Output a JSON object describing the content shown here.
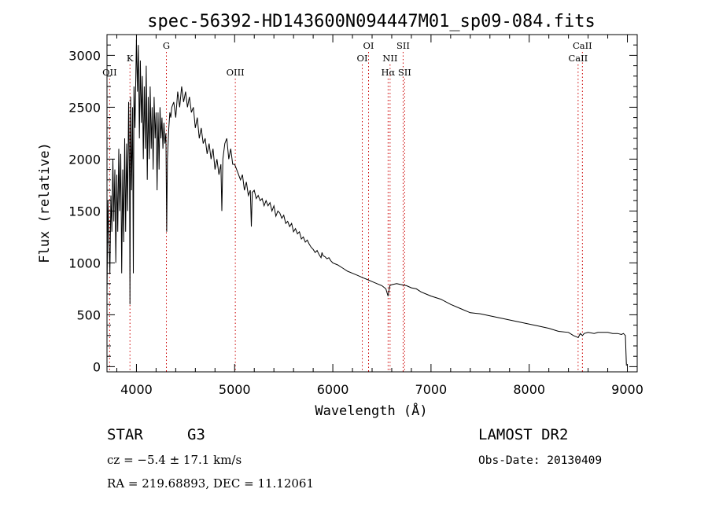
{
  "chart_data": {
    "type": "line",
    "title": "spec-56392-HD143600N094447M01_sp09-084.fits",
    "xlabel": "Wavelength (Å)",
    "ylabel": "Flux (relative)",
    "xlim": [
      3700,
      9100
    ],
    "ylim": [
      -50,
      3200
    ],
    "xticks": [
      4000,
      5000,
      6000,
      7000,
      8000,
      9000
    ],
    "yticks": [
      0,
      500,
      1000,
      1500,
      2000,
      2500,
      3000
    ],
    "grid": false,
    "line_color": "#000000",
    "marker_color": "#cc0000",
    "x": [
      3700,
      3710,
      3720,
      3730,
      3740,
      3750,
      3760,
      3770,
      3780,
      3790,
      3800,
      3810,
      3820,
      3830,
      3840,
      3850,
      3860,
      3870,
      3880,
      3890,
      3900,
      3910,
      3920,
      3930,
      3934,
      3940,
      3950,
      3960,
      3968,
      3975,
      3985,
      4000,
      4010,
      4020,
      4030,
      4040,
      4050,
      4060,
      4070,
      4080,
      4090,
      4100,
      4110,
      4120,
      4130,
      4140,
      4150,
      4160,
      4170,
      4180,
      4190,
      4200,
      4210,
      4220,
      4230,
      4240,
      4250,
      4260,
      4270,
      4280,
      4290,
      4300,
      4308,
      4315,
      4330,
      4340,
      4350,
      4360,
      4380,
      4400,
      4420,
      4440,
      4460,
      4480,
      4500,
      4520,
      4540,
      4560,
      4580,
      4600,
      4620,
      4640,
      4660,
      4680,
      4700,
      4720,
      4740,
      4760,
      4780,
      4800,
      4820,
      4840,
      4860,
      4870,
      4880,
      4900,
      4920,
      4940,
      4960,
      4980,
      5000,
      5020,
      5040,
      5060,
      5080,
      5100,
      5120,
      5140,
      5160,
      5170,
      5180,
      5200,
      5220,
      5240,
      5260,
      5280,
      5300,
      5320,
      5340,
      5360,
      5380,
      5400,
      5420,
      5440,
      5460,
      5480,
      5500,
      5520,
      5540,
      5560,
      5580,
      5600,
      5620,
      5640,
      5660,
      5680,
      5700,
      5720,
      5740,
      5760,
      5780,
      5800,
      5820,
      5840,
      5860,
      5880,
      5890,
      5900,
      5920,
      5940,
      5960,
      5980,
      6000,
      6050,
      6100,
      6150,
      6200,
      6250,
      6300,
      6350,
      6400,
      6450,
      6500,
      6540,
      6563,
      6580,
      6600,
      6650,
      6700,
      6750,
      6800,
      6850,
      6900,
      6950,
      7000,
      7100,
      7200,
      7300,
      7400,
      7500,
      7600,
      7700,
      7800,
      7900,
      8000,
      8100,
      8200,
      8300,
      8400,
      8450,
      8500,
      8520,
      8542,
      8560,
      8600,
      8662,
      8700,
      8800,
      8850,
      8900,
      8940,
      8960,
      8980,
      8990
    ],
    "y": [
      700,
      1600,
      1200,
      900,
      1650,
      1300,
      2000,
      1400,
      1900,
      1000,
      1850,
      1300,
      2100,
      1500,
      2050,
      900,
      1900,
      1200,
      2200,
      1300,
      2150,
      1500,
      2550,
      1800,
      600,
      2600,
      1700,
      2500,
      900,
      2700,
      2300,
      3150,
      2650,
      3100,
      2200,
      2950,
      2350,
      2800,
      2000,
      2700,
      2100,
      2900,
      1800,
      2600,
      2000,
      2700,
      2100,
      2500,
      1900,
      2600,
      2200,
      2450,
      1700,
      2450,
      1900,
      2500,
      2200,
      2400,
      2100,
      2350,
      2150,
      2250,
      1300,
      2000,
      2300,
      2450,
      2400,
      2500,
      2550,
      2400,
      2650,
      2500,
      2700,
      2550,
      2650,
      2500,
      2600,
      2450,
      2500,
      2300,
      2400,
      2200,
      2300,
      2150,
      2200,
      2050,
      2150,
      2000,
      2100,
      1900,
      2000,
      1850,
      1950,
      1500,
      2000,
      2150,
      2200,
      2000,
      2100,
      1950,
      1950,
      1900,
      1850,
      1800,
      1850,
      1700,
      1780,
      1650,
      1700,
      1350,
      1680,
      1700,
      1620,
      1650,
      1600,
      1620,
      1550,
      1600,
      1550,
      1580,
      1500,
      1550,
      1450,
      1500,
      1480,
      1430,
      1460,
      1380,
      1400,
      1350,
      1380,
      1300,
      1330,
      1280,
      1300,
      1230,
      1250,
      1200,
      1220,
      1180,
      1150,
      1130,
      1100,
      1120,
      1080,
      1050,
      1100,
      1070,
      1060,
      1040,
      1050,
      1020,
      1000,
      980,
      950,
      920,
      900,
      880,
      860,
      840,
      820,
      800,
      780,
      750,
      680,
      780,
      790,
      800,
      790,
      780,
      760,
      750,
      720,
      700,
      680,
      650,
      600,
      560,
      520,
      510,
      490,
      470,
      450,
      430,
      410,
      390,
      370,
      340,
      330,
      300,
      280,
      320,
      300,
      320,
      330,
      320,
      330,
      330,
      320,
      320,
      310,
      320,
      300,
      10
    ]
  },
  "spectral_lines": [
    {
      "name": "OII",
      "wavelength": 3727,
      "label_row": 2
    },
    {
      "name": "K",
      "wavelength": 3934,
      "label_row": 1
    },
    {
      "name": "G",
      "wavelength": 4305,
      "label_row": 0
    },
    {
      "name": "OIII",
      "wavelength": 5007,
      "label_row": 2
    },
    {
      "name": "OI",
      "wavelength": 6300,
      "label_row": 1
    },
    {
      "name": "OI",
      "wavelength": 6364,
      "label_row": 0
    },
    {
      "name": "Hα",
      "wavelength": 6563,
      "label_row": 2
    },
    {
      "name": "NII",
      "wavelength": 6583,
      "label_row": 1
    },
    {
      "name": "SII",
      "wavelength": 6716,
      "label_row": 0
    },
    {
      "name": "SII",
      "wavelength": 6731,
      "label_row": 2
    },
    {
      "name": "CaII",
      "wavelength": 8498,
      "label_row": 1
    },
    {
      "name": "CaII",
      "wavelength": 8542,
      "label_row": 0
    }
  ],
  "info": {
    "object_class": "STAR",
    "subclass": "G3",
    "survey": "LAMOST DR2",
    "cz": "cz = −5.4 ± 17.1 km/s",
    "obs_date": "Obs-Date: 20130409",
    "coords": "RA = 219.68893, DEC =  11.12061"
  }
}
